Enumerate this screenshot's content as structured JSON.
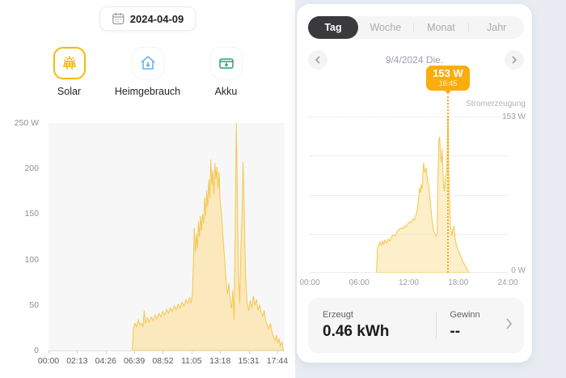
{
  "left_panel": {
    "date_picker": {
      "value": "2024-04-09",
      "icon": "calendar-icon"
    },
    "modes": [
      {
        "label": "Solar",
        "icon": "solar-panel-icon",
        "selected": true,
        "color": "#F5B300"
      },
      {
        "label": "Heimgebrauch",
        "icon": "home-icon",
        "selected": false,
        "color": "#64AEED"
      },
      {
        "label": "Akku",
        "icon": "battery-icon",
        "selected": false,
        "color": "#27A07A"
      }
    ]
  },
  "right_panel": {
    "tabs": [
      {
        "label": "Tag",
        "selected": true
      },
      {
        "label": "Woche",
        "selected": false
      },
      {
        "label": "Monat",
        "selected": false
      },
      {
        "label": "Jahr",
        "selected": false
      }
    ],
    "nav": {
      "date_label": "9/4/2024 Die."
    },
    "tooltip": {
      "value": "153 W",
      "time": "16:45"
    },
    "chart_annotations": {
      "series_label": "Stromerzeugung",
      "max_label": "153 W",
      "zero_label": "0 W"
    },
    "summary": {
      "erzeugt_label": "Erzeugt",
      "erzeugt_value": "0.46 kWh",
      "gewinn_label": "Gewinn",
      "gewinn_value": "--",
      "chevron": "chevron-right-icon"
    }
  },
  "colors": {
    "accent": "#FBAD0E",
    "area_fill_left": "#FBE8BC",
    "area_stroke_left": "#F3C750",
    "area_fill_right": "#FCEFC9",
    "area_stroke_right": "#F5C64C",
    "tab_active_bg": "#3A3A3C",
    "right_bg": "#E9EDF3"
  },
  "chart_data": [
    {
      "type": "area",
      "name": "solar-production-detail",
      "title": "",
      "xlabel": "time of day",
      "ylabel": "Watt",
      "xlim": [
        0,
        18.3
      ],
      "ylim": [
        0,
        250
      ],
      "grid": false,
      "y_ticks": [
        "250 W",
        "200",
        "150",
        "100",
        "50",
        "0"
      ],
      "x_ticks": {
        "labels": [
          "00:00",
          "02:13",
          "04:26",
          "06:39",
          "08:52",
          "11:05",
          "13:18",
          "15:31",
          "17:44"
        ],
        "hours": [
          0,
          2.2167,
          4.4333,
          6.65,
          8.8667,
          11.0833,
          13.3,
          15.5167,
          17.7333
        ]
      },
      "points": [
        [
          6.5,
          0
        ],
        [
          6.58,
          24
        ],
        [
          6.7,
          30
        ],
        [
          6.82,
          26
        ],
        [
          6.95,
          34
        ],
        [
          7.08,
          28
        ],
        [
          7.2,
          30
        ],
        [
          7.32,
          26
        ],
        [
          7.42,
          44
        ],
        [
          7.5,
          30
        ],
        [
          7.65,
          36
        ],
        [
          7.8,
          31
        ],
        [
          7.95,
          37
        ],
        [
          8.1,
          33
        ],
        [
          8.25,
          39
        ],
        [
          8.4,
          35
        ],
        [
          8.55,
          41
        ],
        [
          8.7,
          37
        ],
        [
          8.85,
          43
        ],
        [
          9.0,
          39
        ],
        [
          9.15,
          45
        ],
        [
          9.3,
          41
        ],
        [
          9.45,
          47
        ],
        [
          9.6,
          43
        ],
        [
          9.75,
          49
        ],
        [
          9.9,
          45
        ],
        [
          10.05,
          51
        ],
        [
          10.2,
          47
        ],
        [
          10.35,
          53
        ],
        [
          10.5,
          49
        ],
        [
          10.65,
          56
        ],
        [
          10.8,
          52
        ],
        [
          10.95,
          58
        ],
        [
          11.05,
          52
        ],
        [
          11.15,
          62
        ],
        [
          11.22,
          92
        ],
        [
          11.3,
          135
        ],
        [
          11.38,
          108
        ],
        [
          11.46,
          128
        ],
        [
          11.54,
          112
        ],
        [
          11.62,
          142
        ],
        [
          11.7,
          125
        ],
        [
          11.78,
          148
        ],
        [
          11.86,
          132
        ],
        [
          11.94,
          150
        ],
        [
          12.02,
          140
        ],
        [
          12.1,
          168
        ],
        [
          12.18,
          148
        ],
        [
          12.26,
          176
        ],
        [
          12.34,
          158
        ],
        [
          12.42,
          188
        ],
        [
          12.5,
          168
        ],
        [
          12.58,
          210
        ],
        [
          12.66,
          182
        ],
        [
          12.74,
          198
        ],
        [
          12.82,
          172
        ],
        [
          12.9,
          206
        ],
        [
          12.98,
          188
        ],
        [
          13.06,
          202
        ],
        [
          13.14,
          178
        ],
        [
          13.22,
          196
        ],
        [
          13.3,
          165
        ],
        [
          13.42,
          148
        ],
        [
          13.54,
          122
        ],
        [
          13.66,
          98
        ],
        [
          13.78,
          72
        ],
        [
          13.88,
          62
        ],
        [
          13.98,
          74
        ],
        [
          14.08,
          55
        ],
        [
          14.18,
          46
        ],
        [
          14.28,
          66
        ],
        [
          14.38,
          34
        ],
        [
          14.48,
          140
        ],
        [
          14.56,
          250
        ],
        [
          14.64,
          170
        ],
        [
          14.72,
          85
        ],
        [
          14.82,
          52
        ],
        [
          14.92,
          120
        ],
        [
          15.0,
          148
        ],
        [
          15.08,
          207
        ],
        [
          15.18,
          145
        ],
        [
          15.28,
          80
        ],
        [
          15.4,
          52
        ],
        [
          15.52,
          44
        ],
        [
          15.64,
          55
        ],
        [
          15.76,
          47
        ],
        [
          15.88,
          60
        ],
        [
          16.0,
          50
        ],
        [
          16.12,
          56
        ],
        [
          16.24,
          44
        ],
        [
          16.36,
          50
        ],
        [
          16.48,
          42
        ],
        [
          16.6,
          38
        ],
        [
          16.72,
          44
        ],
        [
          16.84,
          32
        ],
        [
          16.96,
          28
        ],
        [
          17.08,
          24
        ],
        [
          17.2,
          30
        ],
        [
          17.32,
          21
        ],
        [
          17.44,
          15
        ],
        [
          17.56,
          11
        ],
        [
          17.68,
          17
        ],
        [
          17.78,
          8
        ],
        [
          17.88,
          13
        ],
        [
          17.98,
          5
        ],
        [
          18.1,
          9
        ],
        [
          18.2,
          0
        ]
      ]
    },
    {
      "type": "area",
      "name": "stromerzeugung-tag",
      "title": "Stromerzeugung",
      "xlabel": "time of day",
      "ylabel": "Watt",
      "xlim": [
        0,
        24
      ],
      "ylim": [
        0,
        153
      ],
      "grid": true,
      "x_ticks": {
        "labels": [
          "00:00",
          "06:00",
          "12:00",
          "18:00",
          "24:00"
        ],
        "hours": [
          0,
          6,
          12,
          18,
          24
        ]
      },
      "marker": {
        "hour": 16.75,
        "value": 153,
        "value_label": "153 W",
        "time_label": "16:45"
      },
      "points": [
        [
          8.1,
          0
        ],
        [
          8.2,
          22
        ],
        [
          8.35,
          27
        ],
        [
          8.5,
          30
        ],
        [
          8.65,
          27
        ],
        [
          8.8,
          31
        ],
        [
          8.95,
          28
        ],
        [
          9.1,
          32
        ],
        [
          9.3,
          29
        ],
        [
          9.5,
          33
        ],
        [
          9.7,
          31
        ],
        [
          9.9,
          35
        ],
        [
          10.1,
          37
        ],
        [
          10.3,
          36
        ],
        [
          10.5,
          39
        ],
        [
          10.7,
          41
        ],
        [
          10.9,
          43
        ],
        [
          11.1,
          44
        ],
        [
          11.3,
          43
        ],
        [
          11.5,
          46
        ],
        [
          11.7,
          45
        ],
        [
          11.9,
          48
        ],
        [
          12.1,
          50
        ],
        [
          12.3,
          49
        ],
        [
          12.5,
          53
        ],
        [
          12.7,
          52
        ],
        [
          12.9,
          57
        ],
        [
          13.05,
          63
        ],
        [
          13.2,
          72
        ],
        [
          13.3,
          83
        ],
        [
          13.4,
          78
        ],
        [
          13.5,
          86
        ],
        [
          13.6,
          82
        ],
        [
          13.7,
          95
        ],
        [
          13.8,
          108
        ],
        [
          13.95,
          98
        ],
        [
          14.1,
          103
        ],
        [
          14.25,
          92
        ],
        [
          14.4,
          86
        ],
        [
          14.55,
          76
        ],
        [
          14.7,
          62
        ],
        [
          14.85,
          50
        ],
        [
          15.0,
          42
        ],
        [
          15.15,
          38
        ],
        [
          15.3,
          36
        ],
        [
          15.45,
          40
        ],
        [
          15.55,
          95
        ],
        [
          15.65,
          130
        ],
        [
          15.75,
          133
        ],
        [
          15.85,
          115
        ],
        [
          15.95,
          108
        ],
        [
          16.05,
          122
        ],
        [
          16.15,
          98
        ],
        [
          16.3,
          80
        ],
        [
          16.45,
          90
        ],
        [
          16.6,
          100
        ],
        [
          16.73,
          150
        ],
        [
          16.78,
          153
        ],
        [
          16.85,
          100
        ],
        [
          16.95,
          70
        ],
        [
          17.05,
          45
        ],
        [
          17.15,
          40
        ],
        [
          17.25,
          36
        ],
        [
          17.35,
          42
        ],
        [
          17.5,
          46
        ],
        [
          17.6,
          34
        ],
        [
          17.75,
          28
        ],
        [
          17.9,
          24
        ],
        [
          18.1,
          20
        ],
        [
          18.3,
          16
        ],
        [
          18.5,
          12
        ],
        [
          18.7,
          9
        ],
        [
          18.9,
          6
        ],
        [
          19.1,
          3
        ],
        [
          19.3,
          0
        ]
      ]
    }
  ]
}
